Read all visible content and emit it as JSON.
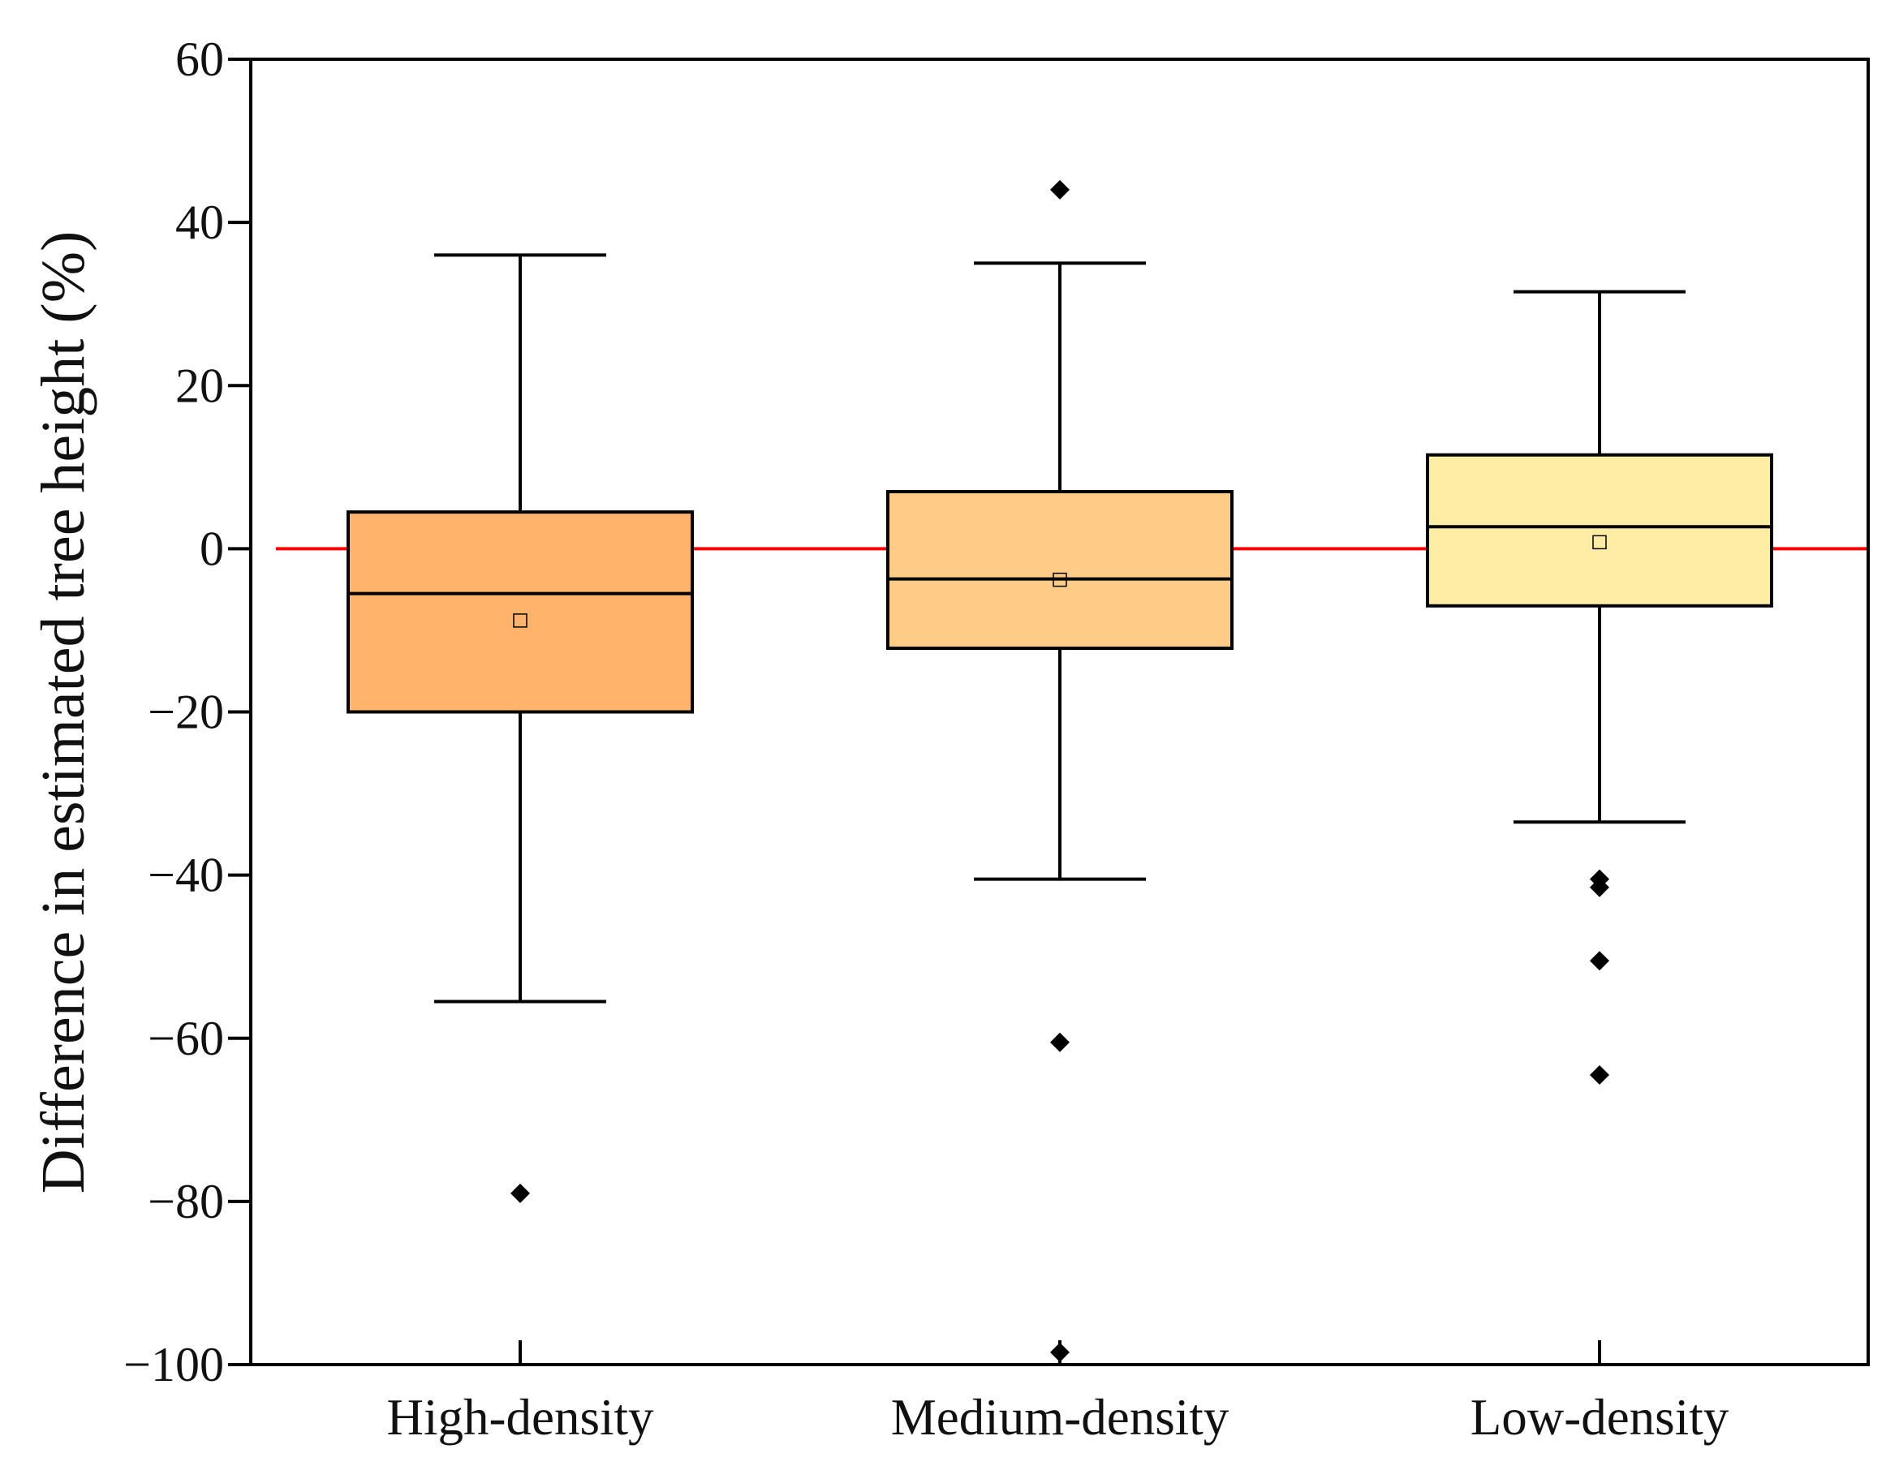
{
  "chart_data": {
    "type": "box",
    "title": "",
    "xlabel": "",
    "ylabel": "Difference in estimated tree height (%)",
    "ylim": [
      -100,
      60
    ],
    "yticks": [
      60,
      40,
      20,
      0,
      -20,
      -40,
      -60,
      -80,
      -100
    ],
    "ytick_labels": [
      "60",
      "40",
      "20",
      "0",
      "−20",
      "−40",
      "−60",
      "−80",
      "−100"
    ],
    "reference_line": {
      "y": 0,
      "color": "#ff0000"
    },
    "categories": [
      "High-density",
      "Medium-density",
      "Low-density"
    ],
    "boxes": [
      {
        "name": "High-density",
        "whisker_low": -55.5,
        "q1": -20,
        "median": -5.5,
        "q3": 4.5,
        "whisker_high": 36,
        "mean": -8.8,
        "outliers": [
          -79
        ],
        "color": "#ffb36b"
      },
      {
        "name": "Medium-density",
        "whisker_low": -40.5,
        "q1": -12.2,
        "median": -3.7,
        "q3": 7,
        "whisker_high": 35,
        "mean": -3.8,
        "outliers": [
          44,
          -60.5,
          -98.5
        ],
        "color": "#ffcc88"
      },
      {
        "name": "Low-density",
        "whisker_low": -33.5,
        "q1": -7,
        "median": 2.7,
        "q3": 11.5,
        "whisker_high": 31.5,
        "mean": 0.8,
        "outliers": [
          -40.5,
          -41.5,
          -50.5,
          -64.5
        ],
        "color": "#ffeca5"
      }
    ]
  }
}
